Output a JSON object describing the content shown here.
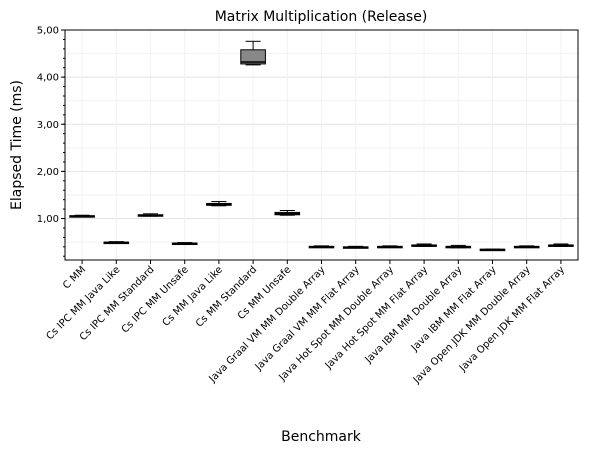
{
  "chart_data": {
    "type": "box",
    "title": "Matrix Multiplication (Release)",
    "xlabel": "Benchmark",
    "ylabel": "Elapsed Time (ms)",
    "ylim": [
      0.12,
      5.0
    ],
    "yticks": [
      {
        "value": 1,
        "label": "1,00"
      },
      {
        "value": 2,
        "label": "2,00"
      },
      {
        "value": 3,
        "label": "3,00"
      },
      {
        "value": 4,
        "label": "4,00"
      },
      {
        "value": 5,
        "label": "5,00"
      }
    ],
    "grid": true,
    "box_color": "#888888",
    "categories": [
      "C MM",
      "Cs IPC MM Java Like",
      "Cs IPC MM Standard",
      "Cs IPC MM Unsafe",
      "Cs MM Java Like",
      "Cs MM Standard",
      "Cs MM Unsafe",
      "Java Graal VM MM Double Array",
      "Java Graal VM MM Flat Array",
      "Java Hot Spot MM Double Array",
      "Java Hot Spot MM Flat Array",
      "Java IBM MM Double Array",
      "Java IBM MM Flat Array",
      "Java Open JDK MM Double Array",
      "Java Open JDK MM Flat Array"
    ],
    "boxes": [
      {
        "min": 1.04,
        "q1": 1.04,
        "median": 1.05,
        "q3": 1.06,
        "max": 1.07
      },
      {
        "min": 0.48,
        "q1": 0.48,
        "median": 0.49,
        "q3": 0.5,
        "max": 0.51
      },
      {
        "min": 1.05,
        "q1": 1.06,
        "median": 1.07,
        "q3": 1.08,
        "max": 1.1
      },
      {
        "min": 0.45,
        "q1": 0.46,
        "median": 0.47,
        "q3": 0.48,
        "max": 0.49
      },
      {
        "min": 1.27,
        "q1": 1.28,
        "median": 1.3,
        "q3": 1.32,
        "max": 1.36
      },
      {
        "min": 4.26,
        "q1": 4.28,
        "median": 4.32,
        "q3": 4.58,
        "max": 4.76
      },
      {
        "min": 1.07,
        "q1": 1.08,
        "median": 1.1,
        "q3": 1.13,
        "max": 1.17
      },
      {
        "min": 0.39,
        "q1": 0.4,
        "median": 0.4,
        "q3": 0.41,
        "max": 0.42
      },
      {
        "min": 0.38,
        "q1": 0.39,
        "median": 0.39,
        "q3": 0.4,
        "max": 0.41
      },
      {
        "min": 0.39,
        "q1": 0.4,
        "median": 0.4,
        "q3": 0.41,
        "max": 0.42
      },
      {
        "min": 0.41,
        "q1": 0.42,
        "median": 0.43,
        "q3": 0.44,
        "max": 0.46
      },
      {
        "min": 0.38,
        "q1": 0.39,
        "median": 0.4,
        "q3": 0.41,
        "max": 0.43
      },
      {
        "min": 0.33,
        "q1": 0.34,
        "median": 0.34,
        "q3": 0.35,
        "max": 0.35
      },
      {
        "min": 0.39,
        "q1": 0.4,
        "median": 0.4,
        "q3": 0.41,
        "max": 0.42
      },
      {
        "min": 0.41,
        "q1": 0.42,
        "median": 0.43,
        "q3": 0.44,
        "max": 0.46
      }
    ]
  }
}
